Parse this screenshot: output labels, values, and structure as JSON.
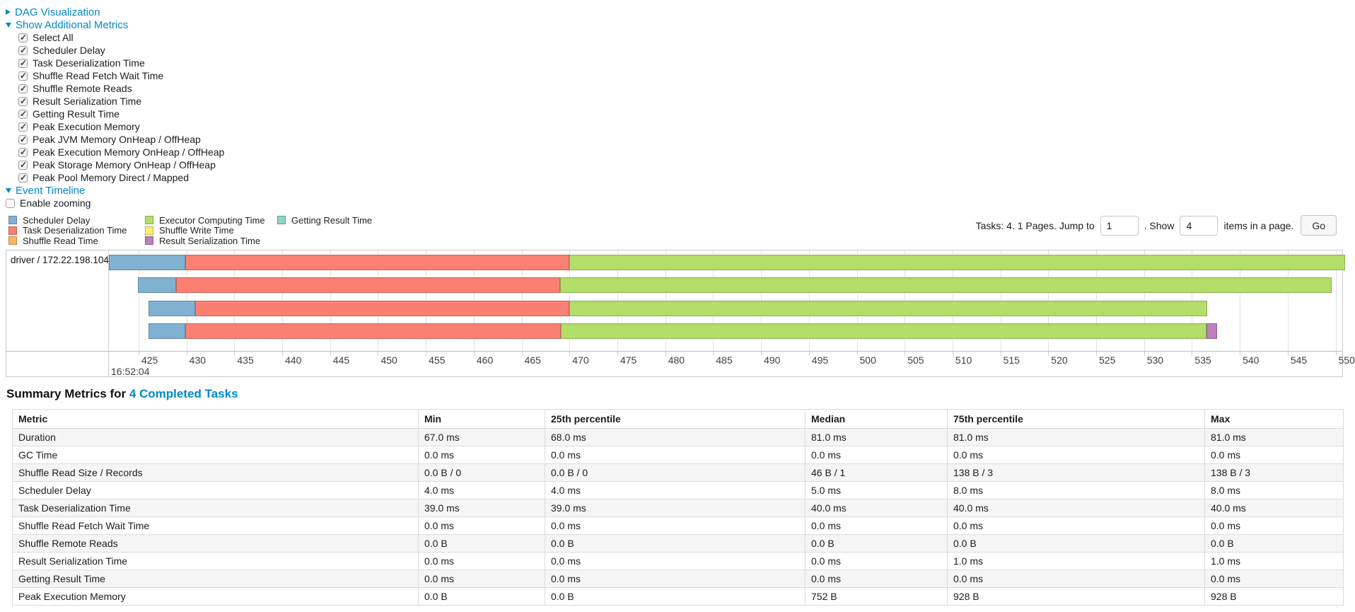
{
  "colors": {
    "scheduler_delay": "#80B1D3",
    "task_deserialization": "#FB8072",
    "shuffle_read": "#FDB462",
    "executor_computing": "#B3DE69",
    "shuffle_write": "#FFED6F",
    "result_serialization": "#BC80BD",
    "getting_result": "#8DD3C7",
    "link": "#0088cc"
  },
  "sections": {
    "dag": {
      "label": "DAG Visualization",
      "state": "collapsed"
    },
    "additional_metrics": {
      "label": "Show Additional Metrics",
      "state": "expanded"
    },
    "event_timeline": {
      "label": "Event Timeline",
      "state": "expanded"
    }
  },
  "metric_checkboxes": [
    {
      "label": "Select All",
      "checked": true
    },
    {
      "label": "Scheduler Delay",
      "checked": true
    },
    {
      "label": "Task Deserialization Time",
      "checked": true
    },
    {
      "label": "Shuffle Read Fetch Wait Time",
      "checked": true
    },
    {
      "label": "Shuffle Remote Reads",
      "checked": true
    },
    {
      "label": "Result Serialization Time",
      "checked": true
    },
    {
      "label": "Getting Result Time",
      "checked": true
    },
    {
      "label": "Peak Execution Memory",
      "checked": true
    },
    {
      "label": "Peak JVM Memory OnHeap / OffHeap",
      "checked": true
    },
    {
      "label": "Peak Execution Memory OnHeap / OffHeap",
      "checked": true
    },
    {
      "label": "Peak Storage Memory OnHeap / OffHeap",
      "checked": true
    },
    {
      "label": "Peak Pool Memory Direct / Mapped",
      "checked": true
    }
  ],
  "enable_zooming": {
    "label": "Enable zooming",
    "checked": false
  },
  "legend_columns": [
    [
      {
        "label": "Scheduler Delay",
        "color": "scheduler_delay"
      },
      {
        "label": "Task Deserialization Time",
        "color": "task_deserialization"
      },
      {
        "label": "Shuffle Read Time",
        "color": "shuffle_read"
      }
    ],
    [
      {
        "label": "Executor Computing Time",
        "color": "executor_computing"
      },
      {
        "label": "Shuffle Write Time",
        "color": "shuffle_write"
      },
      {
        "label": "Result Serialization Time",
        "color": "result_serialization"
      }
    ],
    [
      {
        "label": "Getting Result Time",
        "color": "getting_result"
      }
    ]
  ],
  "pagination": {
    "summary": "Tasks: 4. 1 Pages. Jump to",
    "jump_value": "1",
    "show_label": ". Show",
    "show_value": "4",
    "suffix": "items in a page.",
    "go_label": "Go"
  },
  "chart_data": {
    "type": "bar",
    "subtype": "horizontal-stacked-task-timeline",
    "row_label": "driver / 172.22.198.104",
    "x_axis": {
      "major_label": "16:52:04",
      "unit": "ms within 16:52:04",
      "x_min": 421.9,
      "x_max": 550.7,
      "ticks": [
        425,
        430,
        435,
        440,
        445,
        450,
        455,
        460,
        465,
        470,
        475,
        480,
        485,
        490,
        495,
        500,
        505,
        510,
        515,
        520,
        525,
        530,
        535,
        540,
        545,
        550
      ]
    },
    "tasks": [
      {
        "segments": [
          {
            "metric": "scheduler_delay",
            "start": 421.9,
            "end": 429.9
          },
          {
            "metric": "task_deserialization",
            "start": 429.9,
            "end": 470.0
          },
          {
            "metric": "executor_computing",
            "start": 470.0,
            "end": 551.0
          }
        ]
      },
      {
        "segments": [
          {
            "metric": "scheduler_delay",
            "start": 424.9,
            "end": 428.9
          },
          {
            "metric": "task_deserialization",
            "start": 428.9,
            "end": 469.0
          },
          {
            "metric": "executor_computing",
            "start": 469.0,
            "end": 549.6
          }
        ]
      },
      {
        "segments": [
          {
            "metric": "scheduler_delay",
            "start": 426.0,
            "end": 430.9
          },
          {
            "metric": "task_deserialization",
            "start": 430.9,
            "end": 470.0
          },
          {
            "metric": "executor_computing",
            "start": 470.0,
            "end": 536.6
          }
        ]
      },
      {
        "segments": [
          {
            "metric": "scheduler_delay",
            "start": 426.0,
            "end": 429.9
          },
          {
            "metric": "task_deserialization",
            "start": 429.9,
            "end": 469.1
          },
          {
            "metric": "executor_computing",
            "start": 469.1,
            "end": 536.5
          },
          {
            "metric": "result_serialization",
            "start": 536.5,
            "end": 537.6
          }
        ]
      }
    ]
  },
  "summary_table": {
    "title_prefix": "Summary Metrics for ",
    "title_link": "4 Completed Tasks",
    "columns": [
      "Metric",
      "Min",
      "25th percentile",
      "Median",
      "75th percentile",
      "Max"
    ],
    "rows": [
      {
        "metric": "Duration",
        "values": [
          "67.0 ms",
          "68.0 ms",
          "81.0 ms",
          "81.0 ms",
          "81.0 ms"
        ]
      },
      {
        "metric": "GC Time",
        "values": [
          "0.0 ms",
          "0.0 ms",
          "0.0 ms",
          "0.0 ms",
          "0.0 ms"
        ]
      },
      {
        "metric": "Shuffle Read Size / Records",
        "values": [
          "0.0 B / 0",
          "0.0 B / 0",
          "46 B / 1",
          "138 B / 3",
          "138 B / 3"
        ]
      },
      {
        "metric": "Scheduler Delay",
        "values": [
          "4.0 ms",
          "4.0 ms",
          "5.0 ms",
          "8.0 ms",
          "8.0 ms"
        ]
      },
      {
        "metric": "Task Deserialization Time",
        "values": [
          "39.0 ms",
          "39.0 ms",
          "40.0 ms",
          "40.0 ms",
          "40.0 ms"
        ]
      },
      {
        "metric": "Shuffle Read Fetch Wait Time",
        "values": [
          "0.0 ms",
          "0.0 ms",
          "0.0 ms",
          "0.0 ms",
          "0.0 ms"
        ]
      },
      {
        "metric": "Shuffle Remote Reads",
        "values": [
          "0.0 B",
          "0.0 B",
          "0.0 B",
          "0.0 B",
          "0.0 B"
        ]
      },
      {
        "metric": "Result Serialization Time",
        "values": [
          "0.0 ms",
          "0.0 ms",
          "0.0 ms",
          "1.0 ms",
          "1.0 ms"
        ]
      },
      {
        "metric": "Getting Result Time",
        "values": [
          "0.0 ms",
          "0.0 ms",
          "0.0 ms",
          "0.0 ms",
          "0.0 ms"
        ]
      },
      {
        "metric": "Peak Execution Memory",
        "values": [
          "0.0 B",
          "0.0 B",
          "752 B",
          "928 B",
          "928 B"
        ]
      }
    ]
  }
}
